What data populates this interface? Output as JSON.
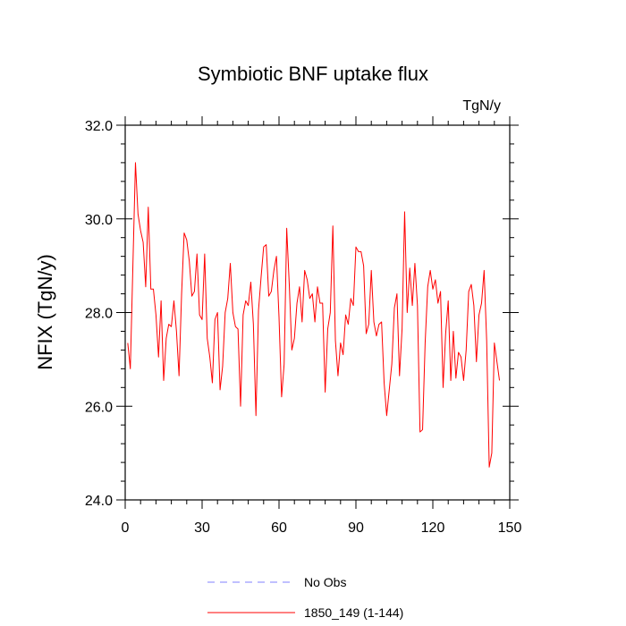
{
  "chart_data": {
    "type": "line",
    "title": "Symbiotic BNF uptake flux",
    "units": "TgN/y",
    "ylabel": "NFIX  (TgN/y)",
    "xlabel": "",
    "xlim": [
      0,
      150
    ],
    "ylim": [
      24.0,
      32.0
    ],
    "x_ticks": [
      0,
      30,
      60,
      90,
      120,
      150
    ],
    "x_tick_labels": [
      "0",
      "30",
      "60",
      "90",
      "120",
      "150"
    ],
    "y_ticks": [
      24.0,
      26.0,
      28.0,
      30.0,
      32.0
    ],
    "y_tick_labels": [
      "24.0",
      "26.0",
      "28.0",
      "30.0",
      "32.0"
    ],
    "grid": false,
    "legend_position": "bottom",
    "legend": [
      {
        "label": "No Obs",
        "color": "#8080ff",
        "dash": true
      },
      {
        "label": "1850_149 (1-144)",
        "color": "#ff0000",
        "dash": false
      }
    ],
    "series": [
      {
        "name": "1850_149 (1-144)",
        "color": "#ff0000",
        "x_start": 1,
        "values": [
          27.35,
          26.8,
          29.0,
          31.2,
          30.1,
          29.75,
          29.5,
          28.55,
          30.25,
          28.5,
          28.5,
          27.95,
          27.05,
          28.25,
          26.55,
          27.45,
          27.75,
          27.7,
          28.25,
          27.6,
          26.65,
          28.4,
          29.7,
          29.55,
          29.1,
          28.35,
          28.45,
          29.25,
          27.95,
          27.85,
          29.25,
          27.45,
          27.05,
          26.5,
          27.85,
          28.0,
          26.35,
          26.85,
          28.0,
          28.3,
          29.05,
          28.0,
          27.7,
          27.65,
          26.0,
          27.95,
          28.25,
          28.15,
          28.65,
          27.75,
          25.8,
          28.05,
          28.75,
          29.4,
          29.45,
          28.35,
          28.45,
          28.9,
          29.2,
          27.9,
          26.2,
          26.9,
          29.8,
          28.6,
          27.2,
          27.45,
          28.2,
          28.55,
          27.8,
          28.9,
          28.7,
          28.3,
          28.4,
          27.8,
          28.55,
          28.2,
          28.2,
          26.3,
          27.65,
          28.0,
          29.85,
          27.4,
          26.65,
          27.35,
          27.1,
          27.95,
          27.75,
          28.3,
          28.15,
          29.4,
          29.3,
          29.3,
          29.0,
          27.55,
          27.75,
          28.9,
          27.8,
          27.5,
          27.75,
          27.8,
          26.5,
          25.8,
          26.35,
          26.9,
          28.1,
          28.4,
          26.65,
          27.65,
          30.15,
          28.0,
          28.95,
          28.15,
          29.05,
          28.15,
          25.45,
          25.5,
          27.35,
          28.55,
          28.9,
          28.5,
          28.7,
          28.2,
          28.45,
          26.4,
          27.55,
          28.25,
          26.55,
          27.6,
          26.6,
          27.15,
          27.05,
          26.55,
          27.2,
          28.45,
          28.6,
          28.15,
          26.95,
          27.95,
          28.2,
          28.9,
          27.4,
          24.7,
          25.0,
          27.35,
          26.95,
          26.55
        ]
      }
    ]
  }
}
